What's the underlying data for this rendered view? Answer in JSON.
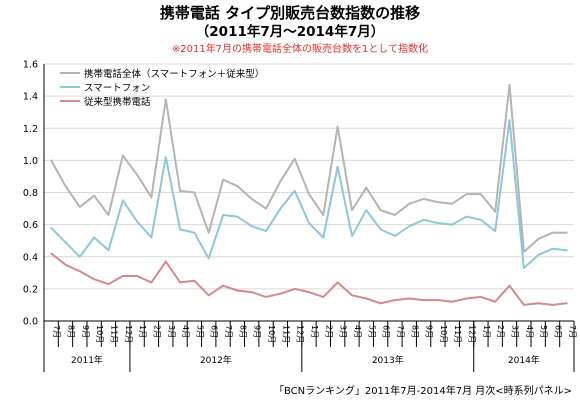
{
  "chart_data": {
    "type": "line",
    "title": "携帯電話 タイプ別販売台数指数の推移",
    "subtitle": "（2011年7月～2014年7月）",
    "note": "※2011年7月の携帯電話全体の販売台数を1として指数化",
    "source": "「BCNランキング」2011年7月-2014年7月 月次<時系列パネル>",
    "ylim": [
      0,
      1.6
    ],
    "yticks": [
      "0.0",
      "0.2",
      "0.4",
      "0.6",
      "0.8",
      "1.0",
      "1.2",
      "1.4",
      "1.6"
    ],
    "grid": true,
    "legend_position": "top-left",
    "categories": [
      "7月",
      "8月",
      "9月",
      "10月",
      "11月",
      "12月",
      "1月",
      "2月",
      "3月",
      "4月",
      "5月",
      "6月",
      "7月",
      "8月",
      "9月",
      "10月",
      "11月",
      "12月",
      "1月",
      "2月",
      "3月",
      "4月",
      "5月",
      "6月",
      "7月",
      "8月",
      "9月",
      "10月",
      "11月",
      "12月",
      "1月",
      "2月",
      "3月",
      "4月",
      "5月",
      "6月",
      "7月"
    ],
    "years": [
      {
        "label": "2011年",
        "start": 0,
        "end": 5
      },
      {
        "label": "2012年",
        "start": 6,
        "end": 17
      },
      {
        "label": "2013年",
        "start": 18,
        "end": 29
      },
      {
        "label": "2014年",
        "start": 30,
        "end": 36
      }
    ],
    "series": [
      {
        "name": "携帯電話全体（スマートフォン＋従来型）",
        "color": "#b4b4b4",
        "values": [
          1.0,
          0.84,
          0.71,
          0.78,
          0.66,
          1.03,
          0.91,
          0.77,
          1.38,
          0.81,
          0.8,
          0.55,
          0.88,
          0.84,
          0.76,
          0.7,
          0.87,
          1.01,
          0.79,
          0.66,
          1.21,
          0.69,
          0.83,
          0.69,
          0.66,
          0.73,
          0.76,
          0.74,
          0.73,
          0.79,
          0.79,
          0.68,
          1.47,
          0.43,
          0.51,
          0.55,
          0.55
        ]
      },
      {
        "name": "スマートフォン",
        "color": "#8cc8d8",
        "values": [
          0.58,
          0.49,
          0.4,
          0.52,
          0.44,
          0.75,
          0.62,
          0.52,
          1.02,
          0.57,
          0.55,
          0.39,
          0.66,
          0.65,
          0.59,
          0.56,
          0.7,
          0.81,
          0.61,
          0.52,
          0.96,
          0.53,
          0.69,
          0.57,
          0.53,
          0.59,
          0.63,
          0.61,
          0.6,
          0.65,
          0.63,
          0.56,
          1.25,
          0.33,
          0.41,
          0.45,
          0.44
        ]
      },
      {
        "name": "従来型携帯電話",
        "color": "#d48a8a",
        "values": [
          0.42,
          0.35,
          0.31,
          0.26,
          0.23,
          0.28,
          0.28,
          0.24,
          0.37,
          0.24,
          0.25,
          0.16,
          0.22,
          0.19,
          0.18,
          0.15,
          0.17,
          0.2,
          0.18,
          0.15,
          0.24,
          0.16,
          0.14,
          0.11,
          0.13,
          0.14,
          0.13,
          0.13,
          0.12,
          0.14,
          0.15,
          0.12,
          0.22,
          0.1,
          0.11,
          0.1,
          0.11
        ]
      }
    ]
  }
}
